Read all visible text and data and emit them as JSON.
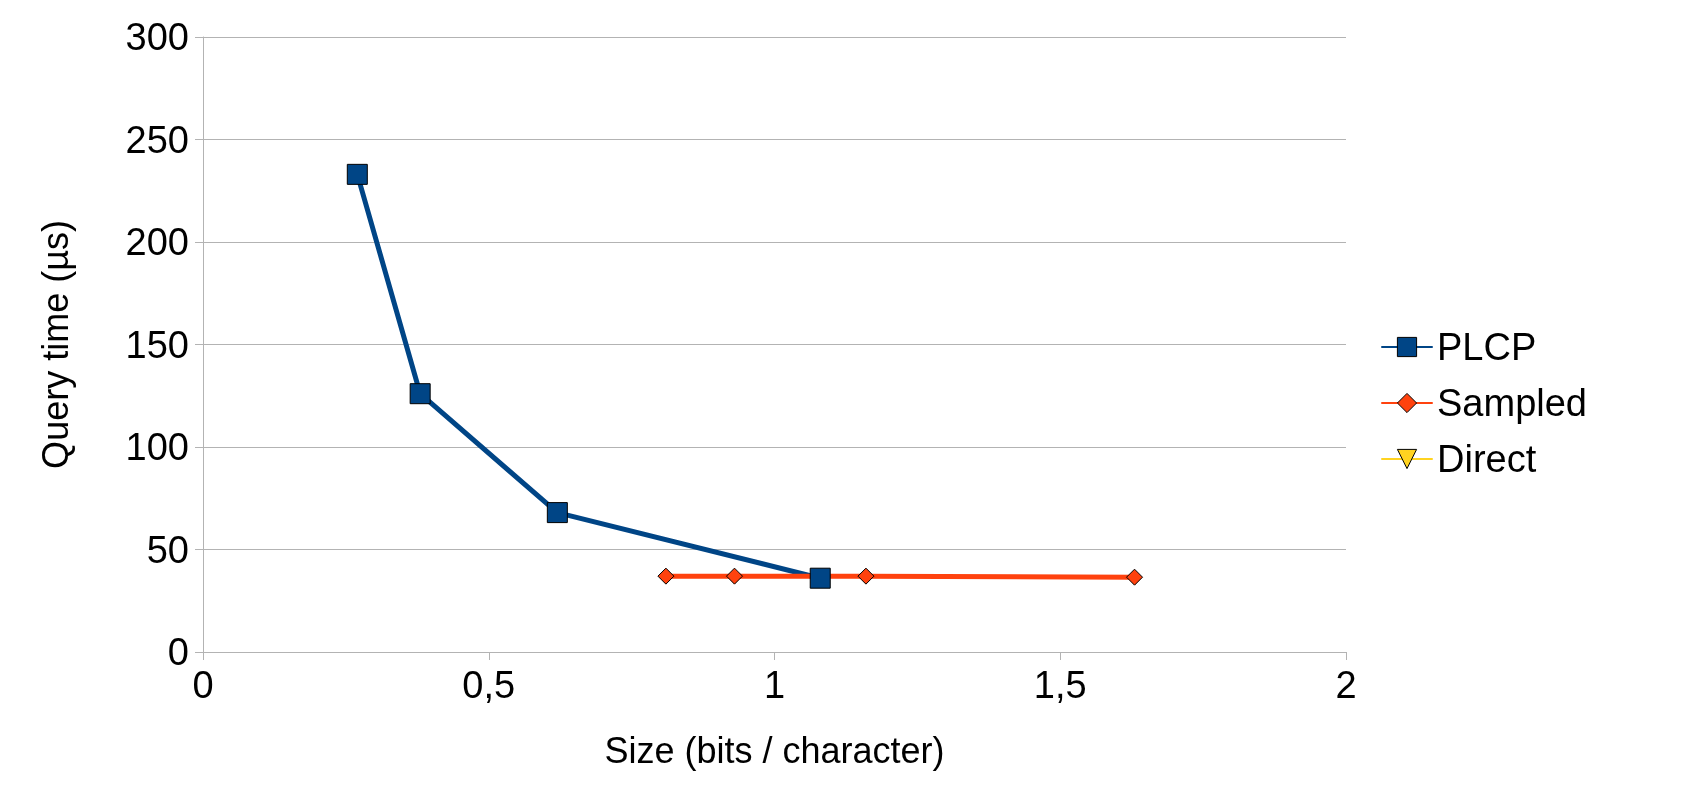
{
  "chart_data": {
    "type": "line",
    "xlabel": "Size (bits / character)",
    "ylabel": "Query time (µs)",
    "xlim": [
      0,
      2
    ],
    "xticks": [
      0,
      {
        "value": 0.5,
        "label": "0,5"
      },
      1,
      {
        "value": 1.5,
        "label": "1,5"
      },
      2
    ],
    "ylim": [
      0,
      300
    ],
    "yticks": [
      0,
      50,
      100,
      150,
      200,
      250,
      300
    ],
    "grid": "y",
    "legend": "right",
    "series": [
      {
        "name": "PLCP",
        "color": "#004586",
        "marker": "square",
        "x": [
          0.27,
          0.38,
          0.62,
          1.08
        ],
        "values": [
          233,
          126,
          68,
          36
        ]
      },
      {
        "name": "Sampled",
        "color": "#ff420e",
        "marker": "diamond",
        "x": [
          0.81,
          0.93,
          1.16,
          1.63
        ],
        "values": [
          37,
          37,
          37,
          36.5
        ]
      },
      {
        "name": "Direct",
        "color": "#ffd320",
        "marker": "triangle"
      }
    ]
  }
}
